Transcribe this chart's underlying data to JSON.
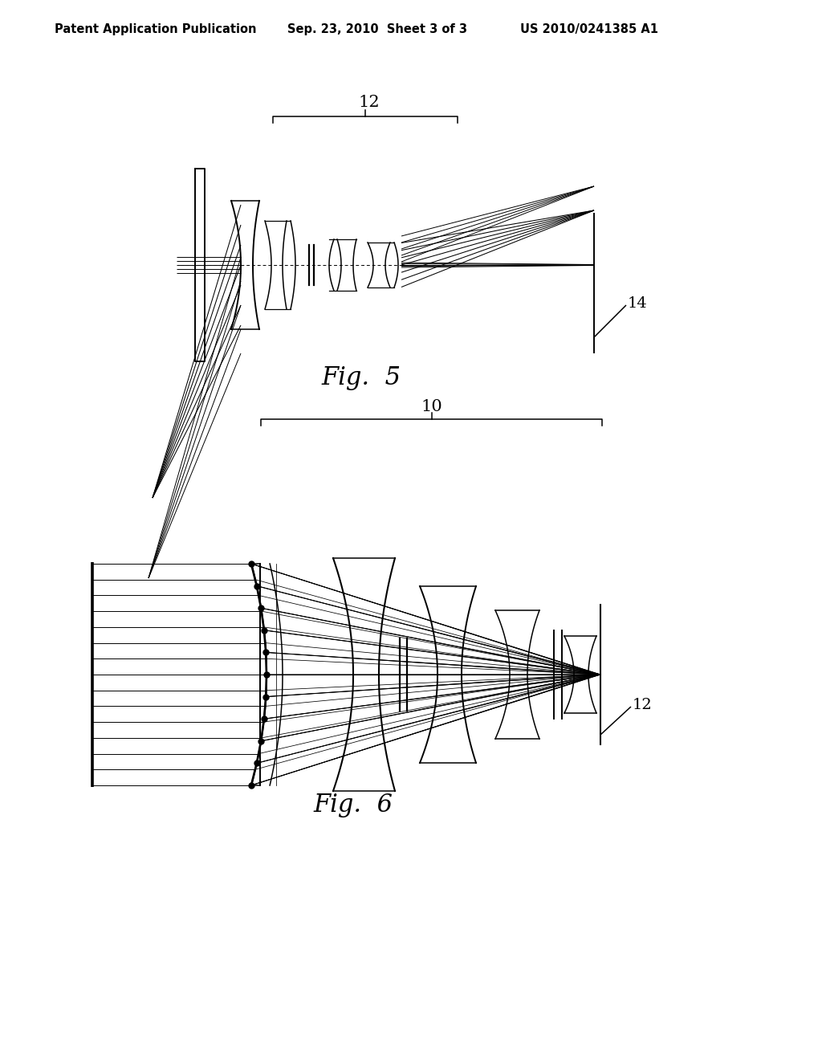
{
  "background_color": "#ffffff",
  "header_left": "Patent Application Publication",
  "header_center": "Sep. 23, 2010  Sheet 3 of 3",
  "header_right": "US 2010/0241385 A1",
  "line_color": "#000000",
  "fig5_label": "Fig.  5",
  "fig6_label": "Fig.  6",
  "fig5_bracket_label": "12",
  "fig5_fp_label": "14",
  "fig6_bracket_label": "10",
  "fig6_fp_label": "12"
}
